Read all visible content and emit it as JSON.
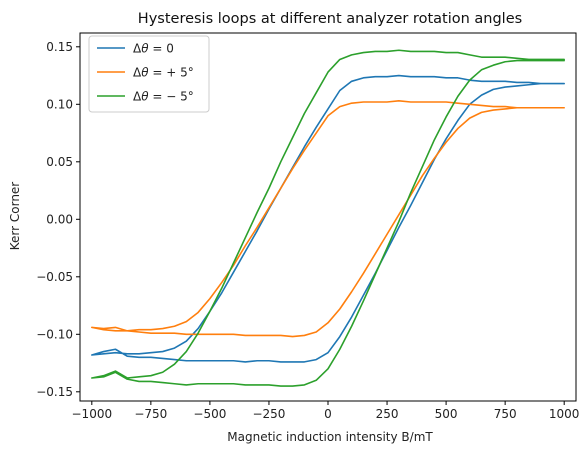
{
  "chart_data": {
    "type": "line",
    "title": "Hysteresis loops at different analyzer rotation angles",
    "xlabel": "Magnetic induction intensity B/mT",
    "ylabel": "Kerr Corner",
    "xlim": [
      -1050,
      1050
    ],
    "ylim": [
      -0.158,
      0.162
    ],
    "xticks": [
      -1000,
      -750,
      -500,
      -250,
      0,
      250,
      500,
      750,
      1000
    ],
    "xtick_labels": [
      "−1000",
      "−750",
      "−500",
      "−250",
      "0",
      "250",
      "500",
      "750",
      "1000"
    ],
    "yticks": [
      -0.15,
      -0.1,
      -0.05,
      0.0,
      0.05,
      0.1,
      0.15
    ],
    "ytick_labels": [
      "−0.15",
      "−0.10",
      "−0.05",
      "0.00",
      "0.05",
      "0.10",
      "0.15"
    ],
    "grid": false,
    "legend_position": "upper-left",
    "series": [
      {
        "name": "Δθ = 0",
        "legend_parts": [
          "Δ",
          "θ",
          " = 0"
        ],
        "color": "#1f77b4",
        "x": [
          1000,
          950,
          900,
          850,
          800,
          750,
          700,
          650,
          600,
          550,
          500,
          450,
          400,
          350,
          300,
          250,
          200,
          150,
          100,
          50,
          0,
          -50,
          -100,
          -150,
          -200,
          -250,
          -300,
          -350,
          -400,
          -450,
          -500,
          -550,
          -600,
          -650,
          -700,
          -750,
          -800,
          -850,
          -900,
          -950,
          -1000,
          -950,
          -900,
          -850,
          -800,
          -750,
          -700,
          -650,
          -600,
          -550,
          -500,
          -450,
          -400,
          -350,
          -300,
          -250,
          -200,
          -150,
          -100,
          -50,
          0,
          50,
          100,
          150,
          200,
          250,
          300,
          350,
          400,
          450,
          500,
          550,
          600,
          650,
          700,
          750,
          800,
          850,
          900,
          950,
          1000
        ],
        "y": [
          0.118,
          0.118,
          0.118,
          0.119,
          0.119,
          0.12,
          0.12,
          0.12,
          0.121,
          0.123,
          0.123,
          0.124,
          0.124,
          0.124,
          0.125,
          0.124,
          0.124,
          0.123,
          0.12,
          0.112,
          0.096,
          0.08,
          0.063,
          0.045,
          0.027,
          0.009,
          -0.01,
          -0.028,
          -0.046,
          -0.064,
          -0.08,
          -0.095,
          -0.106,
          -0.112,
          -0.115,
          -0.116,
          -0.117,
          -0.117,
          -0.116,
          -0.117,
          -0.118,
          -0.115,
          -0.113,
          -0.119,
          -0.12,
          -0.12,
          -0.121,
          -0.122,
          -0.123,
          -0.123,
          -0.123,
          -0.123,
          -0.123,
          -0.124,
          -0.123,
          -0.123,
          -0.124,
          -0.124,
          -0.124,
          -0.122,
          -0.116,
          -0.102,
          -0.085,
          -0.066,
          -0.047,
          -0.027,
          -0.007,
          0.012,
          0.032,
          0.052,
          0.07,
          0.086,
          0.1,
          0.108,
          0.113,
          0.115,
          0.116,
          0.117,
          0.118,
          0.118,
          0.118
        ]
      },
      {
        "name": "Δθ = + 5°",
        "legend_parts": [
          "Δ",
          "θ",
          " = + 5°"
        ],
        "color": "#ff7f0e",
        "x": [
          1000,
          950,
          900,
          850,
          800,
          750,
          700,
          650,
          600,
          550,
          500,
          450,
          400,
          350,
          300,
          250,
          200,
          150,
          100,
          50,
          0,
          -50,
          -100,
          -150,
          -200,
          -250,
          -300,
          -350,
          -400,
          -450,
          -500,
          -550,
          -600,
          -650,
          -700,
          -750,
          -800,
          -850,
          -900,
          -950,
          -1000,
          -950,
          -900,
          -850,
          -800,
          -750,
          -700,
          -650,
          -600,
          -550,
          -500,
          -450,
          -400,
          -350,
          -300,
          -250,
          -200,
          -150,
          -100,
          -50,
          0,
          50,
          100,
          150,
          200,
          250,
          300,
          350,
          400,
          450,
          500,
          550,
          600,
          650,
          700,
          750,
          800,
          850,
          900,
          950,
          1000
        ],
        "y": [
          0.097,
          0.097,
          0.097,
          0.097,
          0.097,
          0.098,
          0.098,
          0.099,
          0.1,
          0.101,
          0.102,
          0.102,
          0.102,
          0.102,
          0.103,
          0.102,
          0.102,
          0.102,
          0.101,
          0.098,
          0.09,
          0.075,
          0.06,
          0.044,
          0.027,
          0.01,
          -0.007,
          -0.023,
          -0.04,
          -0.055,
          -0.069,
          -0.081,
          -0.089,
          -0.093,
          -0.095,
          -0.096,
          -0.096,
          -0.097,
          -0.094,
          -0.095,
          -0.094,
          -0.096,
          -0.097,
          -0.097,
          -0.098,
          -0.099,
          -0.099,
          -0.099,
          -0.1,
          -0.1,
          -0.1,
          -0.1,
          -0.1,
          -0.101,
          -0.101,
          -0.101,
          -0.101,
          -0.102,
          -0.101,
          -0.098,
          -0.09,
          -0.078,
          -0.063,
          -0.047,
          -0.03,
          -0.013,
          0.004,
          0.021,
          0.038,
          0.053,
          0.067,
          0.079,
          0.088,
          0.093,
          0.095,
          0.096,
          0.097,
          0.097,
          0.097,
          0.097,
          0.097
        ]
      },
      {
        "name": "Δθ = − 5°",
        "legend_parts": [
          "Δ",
          "θ",
          " = − 5°"
        ],
        "color": "#2ca02c",
        "x": [
          1000,
          950,
          900,
          850,
          800,
          750,
          700,
          650,
          600,
          550,
          500,
          450,
          400,
          350,
          300,
          250,
          200,
          150,
          100,
          50,
          0,
          -50,
          -100,
          -150,
          -200,
          -250,
          -300,
          -350,
          -400,
          -450,
          -500,
          -550,
          -600,
          -650,
          -700,
          -750,
          -800,
          -850,
          -900,
          -950,
          -1000,
          -950,
          -900,
          -850,
          -800,
          -750,
          -700,
          -650,
          -600,
          -550,
          -500,
          -450,
          -400,
          -350,
          -300,
          -250,
          -200,
          -150,
          -100,
          -50,
          0,
          50,
          100,
          150,
          200,
          250,
          300,
          350,
          400,
          450,
          500,
          550,
          600,
          650,
          700,
          750,
          800,
          850,
          900,
          950,
          1000
        ],
        "y": [
          0.139,
          0.139,
          0.139,
          0.139,
          0.14,
          0.141,
          0.141,
          0.141,
          0.143,
          0.145,
          0.145,
          0.146,
          0.146,
          0.146,
          0.147,
          0.146,
          0.146,
          0.145,
          0.143,
          0.139,
          0.128,
          0.11,
          0.092,
          0.071,
          0.05,
          0.027,
          0.006,
          -0.016,
          -0.038,
          -0.06,
          -0.08,
          -0.099,
          -0.115,
          -0.126,
          -0.133,
          -0.136,
          -0.137,
          -0.138,
          -0.132,
          -0.136,
          -0.138,
          -0.137,
          -0.133,
          -0.139,
          -0.141,
          -0.141,
          -0.142,
          -0.143,
          -0.144,
          -0.143,
          -0.143,
          -0.143,
          -0.143,
          -0.144,
          -0.144,
          -0.144,
          -0.145,
          -0.145,
          -0.144,
          -0.14,
          -0.13,
          -0.113,
          -0.093,
          -0.071,
          -0.048,
          -0.025,
          -0.002,
          0.023,
          0.046,
          0.069,
          0.089,
          0.107,
          0.121,
          0.13,
          0.134,
          0.137,
          0.138,
          0.138,
          0.138,
          0.138,
          0.138
        ]
      }
    ]
  }
}
